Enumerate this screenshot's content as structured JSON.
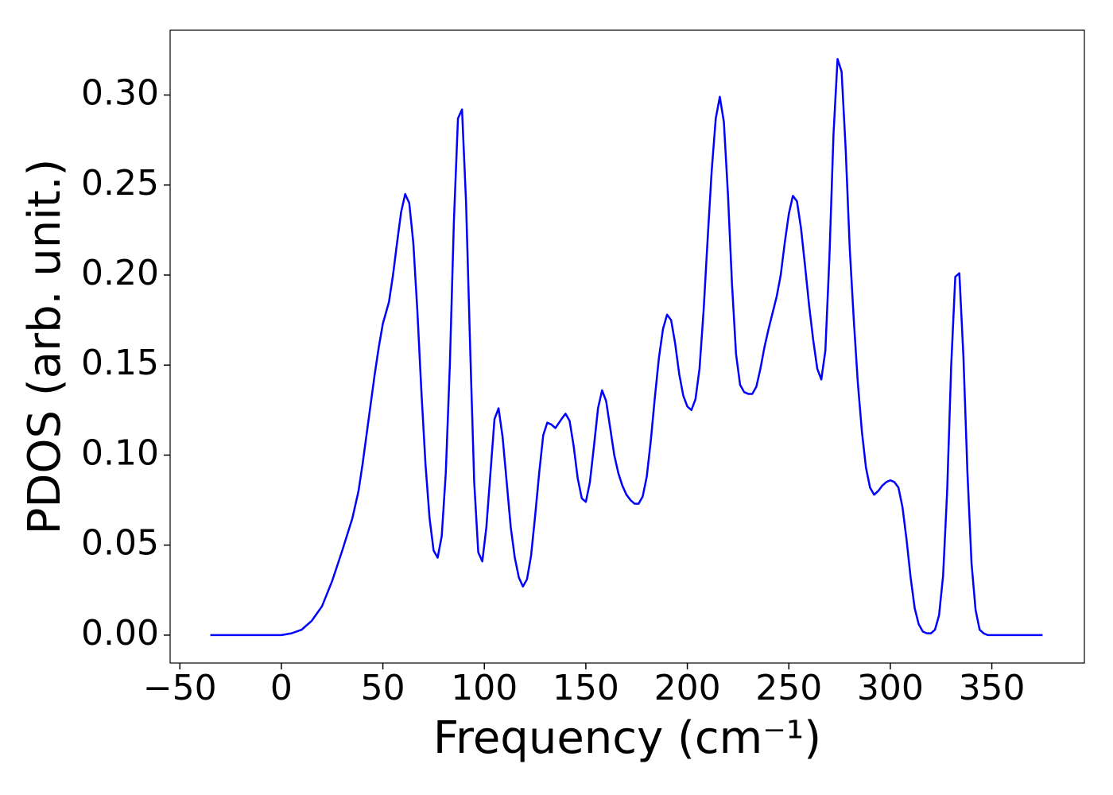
{
  "chart_data": {
    "type": "line",
    "xlabel": "Frequency (cm⁻¹)",
    "ylabel": "PDOS (arb. unit.)",
    "xlim": [
      -54.8,
      395.6
    ],
    "ylim": [
      -0.0155,
      0.336
    ],
    "xticks": [
      {
        "value": -50,
        "label": "−50"
      },
      0,
      50,
      100,
      150,
      200,
      250,
      300,
      350
    ],
    "yticks": [
      {
        "value": 0,
        "label": "0.00"
      },
      {
        "value": 0.05,
        "label": "0.05"
      },
      {
        "value": 0.1,
        "label": "0.10"
      },
      {
        "value": 0.15,
        "label": "0.15"
      },
      {
        "value": 0.2,
        "label": "0.20"
      },
      {
        "value": 0.25,
        "label": "0.25"
      },
      {
        "value": 0.3,
        "label": "0.30"
      }
    ],
    "x": [
      -35,
      0,
      5,
      10,
      15,
      20,
      25,
      30,
      35,
      38,
      40,
      43,
      46,
      48,
      50,
      53,
      55,
      57,
      59,
      61,
      63,
      65,
      67,
      69,
      71,
      73,
      75,
      77,
      79,
      81,
      83,
      85,
      87,
      89,
      91,
      93,
      95,
      97,
      99,
      101,
      103,
      105,
      107,
      109,
      111,
      113,
      115,
      117,
      119,
      121,
      123,
      125,
      127,
      129,
      131,
      133,
      135,
      138,
      140,
      142,
      144,
      146,
      148,
      150,
      152,
      154,
      156,
      158,
      160,
      162,
      164,
      166,
      168,
      170,
      172,
      174,
      176,
      178,
      180,
      182,
      184,
      186,
      188,
      190,
      192,
      194,
      196,
      198,
      200,
      202,
      204,
      206,
      208,
      210,
      212,
      214,
      216,
      218,
      220,
      222,
      224,
      226,
      228,
      230,
      232,
      234,
      236,
      238,
      240,
      242,
      244,
      246,
      248,
      250,
      252,
      254,
      256,
      258,
      260,
      262,
      264,
      266,
      268,
      270,
      272,
      274,
      276,
      278,
      280,
      282,
      284,
      286,
      288,
      290,
      292,
      294,
      296,
      298,
      300,
      302,
      304,
      306,
      308,
      310,
      312,
      314,
      316,
      318,
      320,
      322,
      324,
      326,
      328,
      330,
      332,
      334,
      336,
      338,
      340,
      342,
      344,
      346,
      348,
      350,
      375
    ],
    "series": [
      {
        "name": "PDOS",
        "color": "#0000ff",
        "values": [
          0,
          0,
          0.001,
          0.003,
          0.008,
          0.016,
          0.03,
          0.047,
          0.065,
          0.08,
          0.095,
          0.12,
          0.145,
          0.16,
          0.173,
          0.185,
          0.2,
          0.218,
          0.235,
          0.245,
          0.24,
          0.218,
          0.18,
          0.135,
          0.095,
          0.065,
          0.047,
          0.043,
          0.055,
          0.09,
          0.15,
          0.23,
          0.287,
          0.292,
          0.24,
          0.16,
          0.085,
          0.046,
          0.041,
          0.06,
          0.09,
          0.12,
          0.126,
          0.11,
          0.085,
          0.06,
          0.043,
          0.032,
          0.027,
          0.031,
          0.044,
          0.066,
          0.09,
          0.111,
          0.118,
          0.117,
          0.115,
          0.12,
          0.123,
          0.119,
          0.105,
          0.087,
          0.076,
          0.074,
          0.085,
          0.105,
          0.126,
          0.136,
          0.13,
          0.115,
          0.1,
          0.09,
          0.083,
          0.078,
          0.075,
          0.073,
          0.073,
          0.077,
          0.088,
          0.108,
          0.132,
          0.154,
          0.17,
          0.178,
          0.175,
          0.162,
          0.145,
          0.133,
          0.127,
          0.125,
          0.131,
          0.148,
          0.18,
          0.22,
          0.258,
          0.287,
          0.299,
          0.285,
          0.245,
          0.195,
          0.156,
          0.139,
          0.135,
          0.134,
          0.134,
          0.138,
          0.148,
          0.16,
          0.17,
          0.179,
          0.188,
          0.2,
          0.218,
          0.234,
          0.244,
          0.241,
          0.226,
          0.205,
          0.183,
          0.164,
          0.148,
          0.142,
          0.158,
          0.21,
          0.278,
          0.32,
          0.313,
          0.27,
          0.215,
          0.175,
          0.14,
          0.113,
          0.093,
          0.082,
          0.078,
          0.08,
          0.083,
          0.085,
          0.086,
          0.085,
          0.082,
          0.071,
          0.053,
          0.032,
          0.015,
          0.006,
          0.002,
          0.001,
          0.001,
          0.003,
          0.011,
          0.033,
          0.08,
          0.15,
          0.199,
          0.201,
          0.155,
          0.09,
          0.04,
          0.014,
          0.003,
          0.001,
          0,
          0,
          0
        ]
      }
    ]
  }
}
